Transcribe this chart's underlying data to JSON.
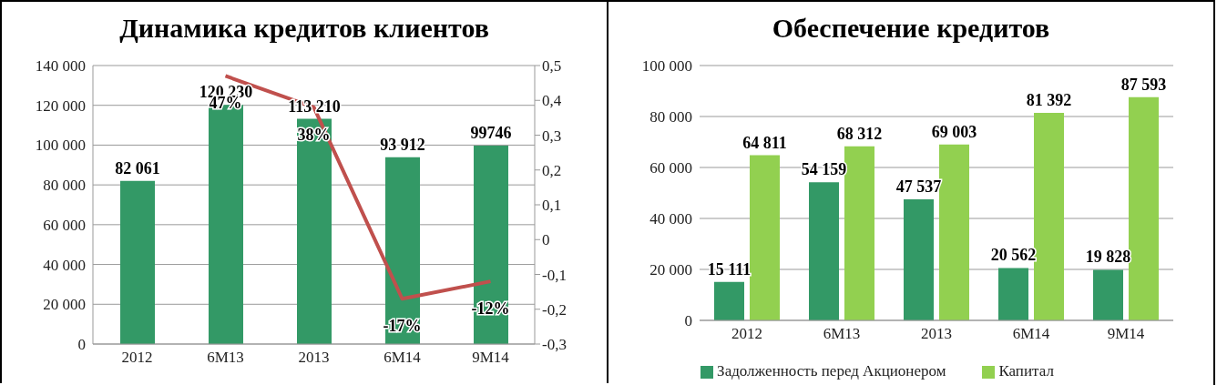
{
  "chart_data": [
    {
      "type": "bar",
      "title": "Динамика кредитов клиентов",
      "categories": [
        "2012",
        "6M13",
        "2013",
        "6M14",
        "9M14"
      ],
      "series": [
        {
          "type": "bar",
          "color": "#339966",
          "values": [
            82061,
            120230,
            113210,
            93912,
            99746
          ],
          "value_labels": [
            "82 061",
            "120 230",
            "113 210",
            "93 912",
            "99746"
          ]
        },
        {
          "type": "line",
          "axis": "y2",
          "color": "#c0504d",
          "values": [
            null,
            0.47,
            0.38,
            -0.17,
            -0.12
          ],
          "value_labels": [
            null,
            "47%",
            "38%",
            "-17%",
            "-12%"
          ]
        }
      ],
      "ylim": [
        0,
        140000
      ],
      "yticks": [
        0,
        {
          "value": 20000,
          "label": "20 000"
        },
        {
          "value": 40000,
          "label": "40 000"
        },
        {
          "value": 60000,
          "label": "60 000"
        },
        {
          "value": 80000,
          "label": "80 000"
        },
        {
          "value": 100000,
          "label": "100 000"
        },
        {
          "value": 120000,
          "label": "120 000"
        },
        {
          "value": 140000,
          "label": "140 000"
        }
      ],
      "y2lim": [
        -0.3,
        0.5
      ],
      "y2ticks": [
        {
          "value": -0.3,
          "label": "-0,3"
        },
        {
          "value": -0.2,
          "label": "-0,2"
        },
        {
          "value": -0.1,
          "label": "-0,1"
        },
        0,
        {
          "value": 0.1,
          "label": "0,1"
        },
        {
          "value": 0.2,
          "label": "0,2"
        },
        {
          "value": 0.3,
          "label": "0,3"
        },
        {
          "value": 0.4,
          "label": "0,4"
        },
        {
          "value": 0.5,
          "label": "0,5"
        }
      ],
      "grid": "y",
      "legend": false,
      "marker": "none"
    },
    {
      "type": "bar",
      "title": "Обеспечение кредитов",
      "categories": [
        "2012",
        "6M13",
        "2013",
        "6M14",
        "9M14"
      ],
      "series": [
        {
          "name": "Задолженность перед Акционером",
          "color": "#339966",
          "values": [
            15111,
            54159,
            47537,
            20562,
            19828
          ],
          "value_labels": [
            "15 111",
            "54 159",
            "47 537",
            "20 562",
            "19 828"
          ]
        },
        {
          "name": "Капитал",
          "color": "#92d050",
          "values": [
            64811,
            68312,
            69003,
            81392,
            87593
          ],
          "value_labels": [
            "64 811",
            "68 312",
            "69 003",
            "81 392",
            "87 593"
          ]
        }
      ],
      "ylim": [
        0,
        100000
      ],
      "yticks": [
        0,
        {
          "value": 20000,
          "label": "20 000"
        },
        {
          "value": 40000,
          "label": "40 000"
        },
        {
          "value": 60000,
          "label": "60 000"
        },
        {
          "value": 80000,
          "label": "80 000"
        },
        {
          "value": 100000,
          "label": "100 000"
        }
      ],
      "grid": "y",
      "legend": "bottom"
    }
  ]
}
